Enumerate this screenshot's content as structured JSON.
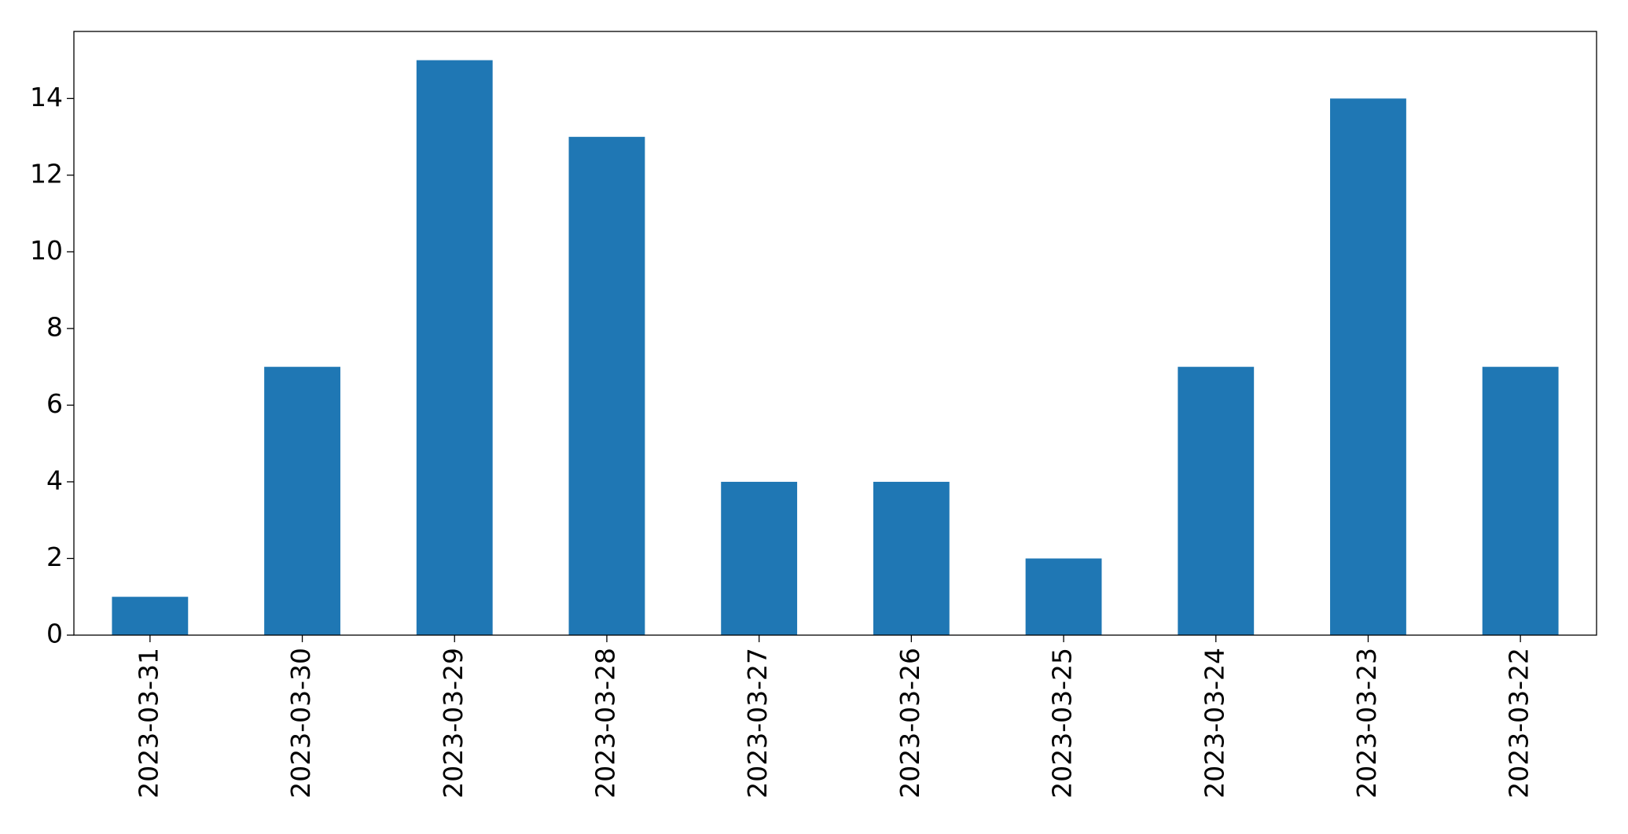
{
  "chart_data": {
    "type": "bar",
    "categories": [
      "2023-03-31",
      "2023-03-30",
      "2023-03-29",
      "2023-03-28",
      "2023-03-27",
      "2023-03-26",
      "2023-03-25",
      "2023-03-24",
      "2023-03-23",
      "2023-03-22"
    ],
    "values": [
      1,
      7,
      15,
      13,
      4,
      4,
      2,
      7,
      14,
      7
    ],
    "color": "#1f77b4",
    "ylim": [
      0,
      15.75
    ],
    "yticks": [
      0,
      2,
      4,
      6,
      8,
      10,
      12,
      14
    ],
    "grid": false
  }
}
